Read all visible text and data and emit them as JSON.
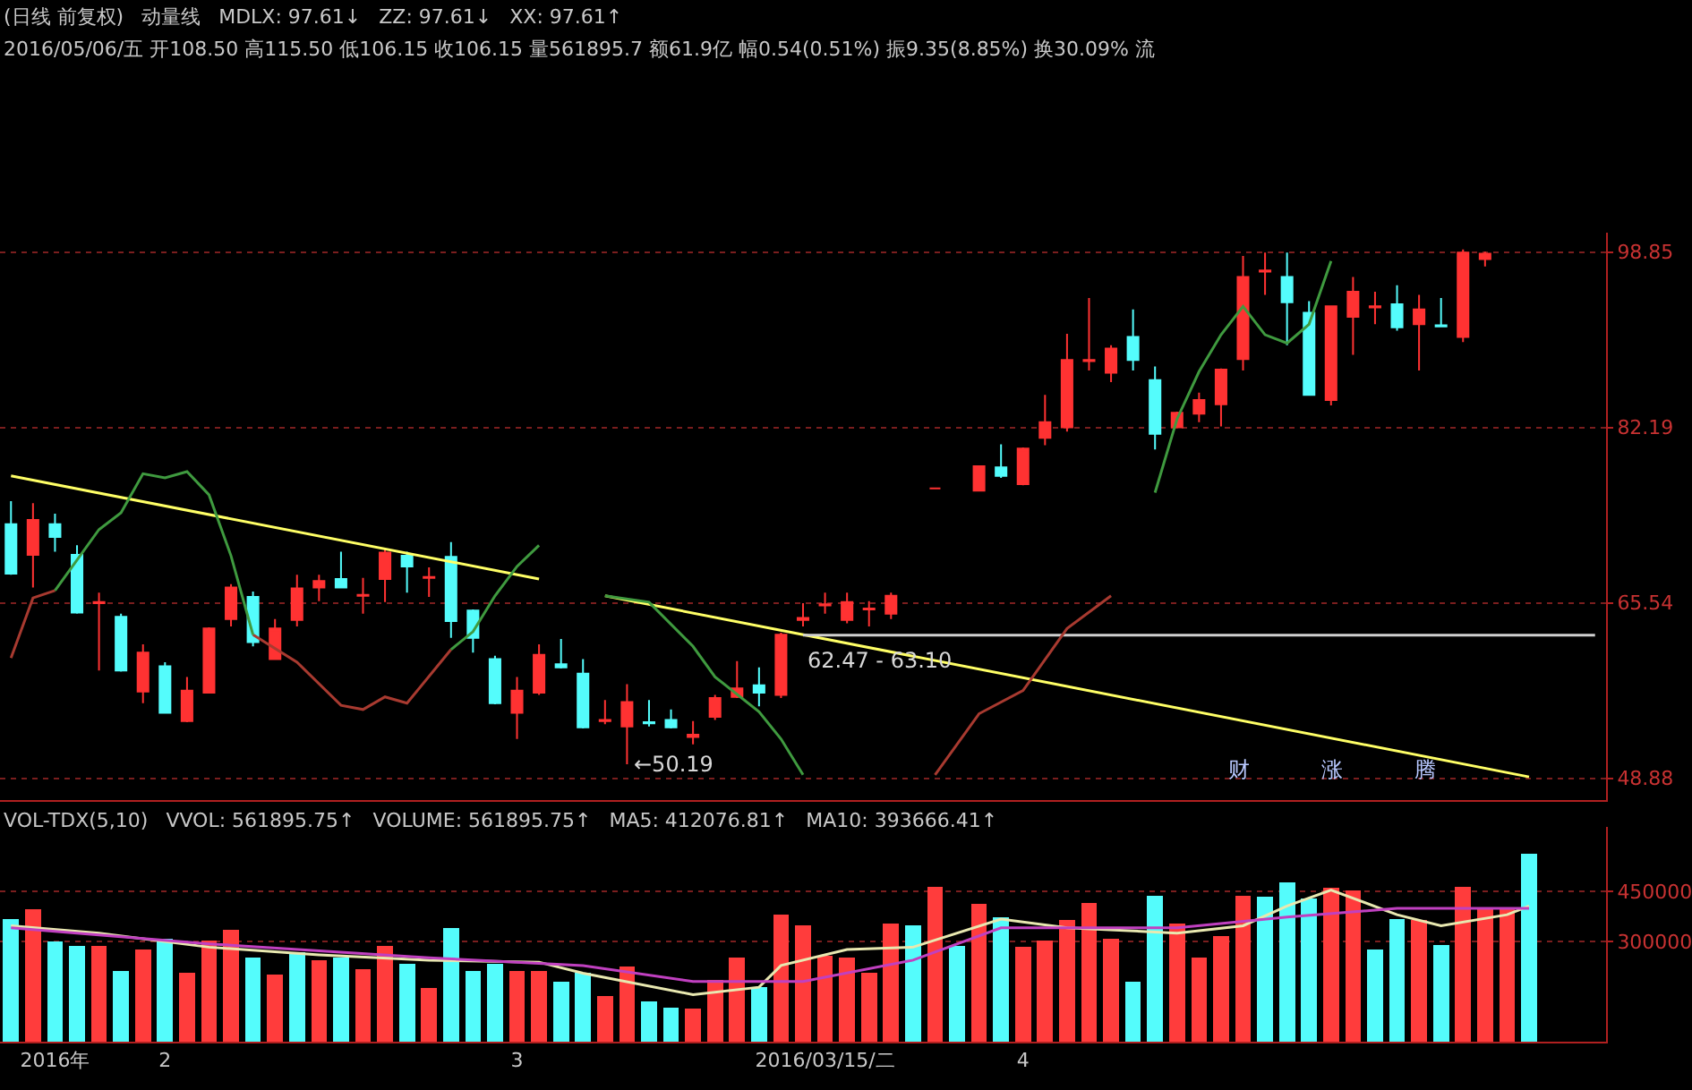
{
  "chart_data": [
    {
      "type": "candlestick",
      "title": "(日线 前复权)",
      "subtitle": "2016/05/06/五 开108.50 高115.50 低106.15 收106.15 量561895.7 额61.9亿 幅0.54(0.51%) 振9.35(8.85%) 换30.09% 流",
      "annotations": [
        "动量线",
        "MDLX: 97.61↓",
        "ZZ: 97.61↓",
        "XX: 97.61↑",
        "←50.19",
        "财",
        "涨",
        "腾",
        {
          "text": "62.47 - 63.10",
          "y": 62.47
        }
      ],
      "categories": [
        null,
        null,
        null,
        null,
        null,
        null,
        null,
        null,
        null,
        null,
        null,
        null,
        null,
        null,
        null,
        null,
        null,
        null,
        null,
        null,
        null,
        null,
        null,
        null,
        null,
        null,
        null,
        null,
        null,
        null,
        null,
        null,
        null,
        null,
        null,
        null,
        null,
        null,
        null,
        null,
        null,
        null,
        null,
        null,
        null,
        null,
        null,
        null,
        null,
        null,
        null,
        null,
        null,
        null,
        null,
        null,
        null,
        null,
        null,
        null,
        null,
        null,
        null,
        null,
        null,
        null,
        null,
        null,
        null,
        null,
        null,
        null,
        null
      ],
      "ohlc": [
        [
          73.0,
          75.2,
          68.2,
          68.3
        ],
        [
          70.1,
          75.0,
          67.0,
          73.4
        ],
        [
          73.0,
          74.0,
          70.4,
          71.8
        ],
        [
          70.1,
          71.0,
          64.5,
          64.6
        ],
        [
          65.5,
          66.5,
          59.1,
          65.6
        ],
        [
          64.2,
          64.5,
          59.0,
          59.1
        ],
        [
          57.1,
          61.6,
          56.0,
          60.8
        ],
        [
          59.5,
          59.9,
          55.0,
          55.1
        ],
        [
          54.3,
          58.5,
          54.2,
          57.2
        ],
        [
          57.0,
          63.2,
          57.0,
          63.1
        ],
        [
          64.0,
          67.3,
          63.3,
          67.0
        ],
        [
          66.1,
          66.6,
          61.4,
          61.8
        ],
        [
          60.2,
          64.0,
          60.2,
          63.1
        ],
        [
          63.9,
          68.2,
          63.3,
          66.9
        ],
        [
          67.0,
          68.2,
          65.7,
          67.6
        ],
        [
          67.8,
          70.4,
          66.9,
          67.0
        ],
        [
          66.2,
          67.9,
          64.5,
          66.3
        ],
        [
          67.8,
          70.6,
          65.6,
          70.3
        ],
        [
          70.0,
          70.4,
          66.5,
          69.0
        ],
        [
          67.9,
          68.9,
          66.1,
          68.0
        ],
        [
          69.9,
          71.3,
          62.2,
          63.8
        ],
        [
          64.8,
          64.9,
          60.8,
          62.2
        ],
        [
          60.2,
          60.5,
          55.9,
          56.0
        ],
        [
          55.1,
          58.5,
          52.6,
          57.2
        ],
        [
          57.0,
          61.6,
          56.8,
          60.6
        ],
        [
          59.7,
          62.1,
          59.3,
          59.4
        ],
        [
          58.8,
          60.2,
          53.6,
          53.7
        ],
        [
          54.3,
          56.3,
          54.0,
          54.4
        ],
        [
          53.8,
          57.8,
          50.19,
          56.1
        ],
        [
          54.2,
          56.3,
          53.8,
          54.1
        ],
        [
          54.4,
          55.4,
          53.6,
          53.7
        ],
        [
          52.8,
          54.3,
          52.1,
          53.0
        ],
        [
          54.7,
          56.8,
          54.4,
          56.5
        ],
        [
          56.6,
          60.0,
          56.5,
          57.4
        ],
        [
          57.7,
          59.4,
          55.7,
          57.0
        ],
        [
          56.8,
          62.7,
          56.5,
          62.5
        ],
        [
          63.9,
          65.5,
          63.3,
          64.1
        ],
        [
          65.3,
          66.5,
          64.5,
          65.4
        ],
        [
          63.9,
          66.5,
          63.6,
          65.6
        ],
        [
          64.9,
          65.7,
          63.3,
          65.0
        ],
        [
          64.5,
          66.5,
          64.0,
          66.2
        ],
        null,
        [
          76.4,
          76.4,
          76.4,
          76.4
        ],
        null,
        [
          76.2,
          78.5,
          76.1,
          78.5
        ],
        [
          78.4,
          80.6,
          77.4,
          77.6
        ],
        [
          76.8,
          80.3,
          76.7,
          80.2
        ],
        [
          81.2,
          85.3,
          80.5,
          82.7
        ],
        [
          82.2,
          91.1,
          81.8,
          88.6
        ],
        [
          88.5,
          94.5,
          87.6,
          88.6
        ],
        [
          87.4,
          90.0,
          86.5,
          89.7
        ],
        [
          90.8,
          93.4,
          87.6,
          88.6
        ],
        [
          86.7,
          88.0,
          80.1,
          81.6
        ],
        [
          82.2,
          83.7,
          82.1,
          83.6
        ],
        [
          83.5,
          85.5,
          82.7,
          84.8
        ],
        [
          84.4,
          87.8,
          82.3,
          87.7
        ],
        [
          88.7,
          98.5,
          87.6,
          96.5
        ],
        [
          97.0,
          98.8,
          94.8,
          97.1
        ],
        [
          96.5,
          98.8,
          90.0,
          94.1
        ],
        [
          93.1,
          94.2,
          85.2,
          85.3
        ],
        [
          84.8,
          93.8,
          84.3,
          93.7
        ],
        [
          92.7,
          96.5,
          89.1,
          95.1
        ],
        [
          93.6,
          95.1,
          92.0,
          93.7
        ],
        [
          93.9,
          95.7,
          91.4,
          91.7
        ],
        [
          92.0,
          94.8,
          87.6,
          93.4
        ],
        [
          91.9,
          94.5,
          91.7,
          91.8
        ],
        [
          90.8,
          99.1,
          90.3,
          98.8
        ],
        [
          98.2,
          98.9,
          97.5,
          98.7
        ],
        null,
        null,
        null,
        null,
        null
      ],
      "series": [
        {
          "type": "line",
          "color": "#ffff66",
          "values": [
            77.6,
            null,
            null,
            null,
            null,
            null,
            null,
            null,
            null,
            null,
            null,
            null,
            null,
            null,
            null,
            null,
            null,
            null,
            null,
            null,
            null,
            null,
            null,
            null,
            67.8,
            null,
            null,
            null,
            null,
            null,
            null,
            null,
            null,
            null,
            null,
            null,
            null,
            null,
            null,
            null,
            null,
            null,
            null,
            null,
            null,
            null,
            null,
            null,
            null,
            null,
            null,
            null,
            null,
            null,
            null,
            null,
            null,
            null,
            null,
            null,
            null,
            null,
            null,
            null,
            null,
            null,
            null,
            null,
            null,
            null,
            null,
            null,
            null
          ]
        },
        {
          "type": "line",
          "color": "#ffff66",
          "values": [
            null,
            null,
            null,
            null,
            null,
            null,
            null,
            null,
            null,
            null,
            null,
            null,
            null,
            null,
            null,
            null,
            null,
            null,
            null,
            null,
            null,
            null,
            null,
            null,
            null,
            null,
            null,
            66.2,
            null,
            null,
            null,
            null,
            null,
            null,
            null,
            null,
            null,
            null,
            null,
            null,
            null,
            null,
            null,
            null,
            null,
            null,
            null,
            null,
            null,
            null,
            null,
            null,
            null,
            null,
            null,
            null,
            null,
            null,
            null,
            null,
            null,
            null,
            null,
            null,
            null,
            null,
            null,
            null,
            null,
            49.0,
            null,
            null,
            null
          ]
        },
        {
          "type": "line",
          "color": "#d0d0d0",
          "values": [
            null,
            null,
            null,
            null,
            null,
            null,
            null,
            null,
            null,
            null,
            null,
            null,
            null,
            null,
            null,
            null,
            null,
            null,
            null,
            null,
            null,
            null,
            null,
            null,
            null,
            null,
            null,
            null,
            null,
            null,
            null,
            null,
            null,
            null,
            null,
            null,
            62.47,
            null,
            null,
            null,
            null,
            null,
            null,
            null,
            null,
            null,
            null,
            null,
            null,
            null,
            null,
            null,
            null,
            null,
            null,
            null,
            null,
            null,
            null,
            null,
            null,
            null,
            null,
            null,
            null,
            null,
            null,
            null,
            null,
            null,
            null,
            null,
            62.47
          ]
        },
        {
          "type": "line",
          "color": "#a83a30",
          "values": [
            60.3,
            66.0,
            66.7,
            null,
            null,
            null,
            null,
            null,
            null,
            null,
            null,
            null,
            null,
            null,
            null,
            null,
            null,
            null,
            null,
            null,
            null,
            null,
            null,
            null,
            null,
            null,
            null,
            null,
            null,
            null,
            null,
            null,
            null,
            null,
            null,
            null,
            null,
            null,
            null,
            null,
            null,
            null,
            null,
            null,
            null,
            null,
            null,
            null,
            null,
            null,
            null,
            null,
            null,
            null,
            null,
            null,
            null,
            null,
            null,
            null,
            null,
            null,
            null,
            null,
            null,
            null,
            null,
            null,
            null,
            null,
            null,
            null,
            null
          ]
        },
        {
          "type": "line",
          "color": "#a83a30",
          "values": [
            null,
            null,
            null,
            null,
            null,
            null,
            null,
            null,
            null,
            null,
            null,
            62.5,
            null,
            59.9,
            null,
            55.8,
            55.4,
            56.6,
            56.0,
            null,
            61.1,
            null,
            null,
            null,
            null,
            null,
            null,
            null,
            null,
            null,
            null,
            null,
            null,
            null,
            null,
            null,
            null,
            null,
            null,
            null,
            null,
            null,
            null,
            null,
            null,
            null,
            null,
            null,
            null,
            null,
            null,
            null,
            null,
            null,
            null,
            null,
            null,
            null,
            null,
            null,
            null,
            null,
            null,
            null,
            null,
            null,
            null,
            null,
            null,
            null,
            null,
            null,
            null
          ]
        },
        {
          "type": "line",
          "color": "#a83a30",
          "values": [
            null,
            null,
            null,
            null,
            null,
            null,
            null,
            null,
            null,
            null,
            null,
            null,
            null,
            null,
            null,
            null,
            null,
            null,
            null,
            null,
            null,
            null,
            null,
            null,
            null,
            null,
            null,
            null,
            null,
            null,
            null,
            null,
            null,
            null,
            null,
            null,
            null,
            null,
            null,
            null,
            null,
            null,
            49.2,
            null,
            55.0,
            null,
            57.2,
            null,
            63.1,
            null,
            66.2,
            null,
            null,
            null,
            null,
            null,
            null,
            null,
            null,
            null,
            null,
            null,
            null,
            null,
            null,
            null,
            null,
            null,
            null,
            null,
            null,
            null,
            null
          ]
        },
        {
          "type": "line",
          "color": "#3f9a3f",
          "values": [
            null,
            null,
            66.7,
            null,
            72.5,
            74.1,
            77.8,
            77.4,
            78.0,
            75.8,
            70.0,
            62.5,
            null,
            null,
            null,
            null,
            null,
            null,
            null,
            null,
            null,
            null,
            null,
            null,
            null,
            null,
            null,
            null,
            null,
            null,
            null,
            null,
            null,
            null,
            null,
            null,
            null,
            null,
            null,
            null,
            null,
            null,
            null,
            null,
            null,
            null,
            null,
            null,
            null,
            null,
            null,
            null,
            null,
            null,
            null,
            null,
            null,
            null,
            null,
            null,
            null,
            null,
            null,
            null,
            null,
            null,
            null,
            null,
            null,
            null,
            null,
            null,
            null
          ]
        },
        {
          "type": "line",
          "color": "#3f9a3f",
          "values": [
            null,
            null,
            null,
            null,
            null,
            null,
            null,
            null,
            null,
            null,
            null,
            null,
            null,
            null,
            null,
            null,
            null,
            null,
            null,
            null,
            61.1,
            62.8,
            66.2,
            69.0,
            71.0,
            null,
            null,
            null,
            null,
            null,
            null,
            null,
            null,
            null,
            null,
            null,
            null,
            null,
            null,
            null,
            null,
            null,
            null,
            null,
            null,
            null,
            null,
            null,
            null,
            null,
            null,
            null,
            null,
            null,
            null,
            null,
            null,
            null,
            null,
            null,
            null,
            null,
            null,
            null,
            null,
            null,
            null,
            null,
            null,
            null,
            null,
            null,
            null
          ]
        },
        {
          "type": "line",
          "color": "#3f9a3f",
          "values": [
            null,
            null,
            null,
            null,
            null,
            null,
            null,
            null,
            null,
            null,
            null,
            null,
            null,
            null,
            null,
            null,
            null,
            null,
            null,
            null,
            null,
            null,
            null,
            null,
            null,
            null,
            null,
            66.2,
            null,
            65.6,
            null,
            61.4,
            58.5,
            null,
            55.2,
            52.6,
            49.2,
            null,
            null,
            null,
            null,
            null,
            null,
            null,
            null,
            null,
            null,
            null,
            null,
            null,
            null,
            null,
            null,
            null,
            null,
            null,
            null,
            null,
            null,
            null,
            null,
            null,
            null,
            null,
            null,
            null,
            null,
            null,
            null,
            null,
            null,
            null,
            null
          ]
        },
        {
          "type": "line",
          "color": "#3f9a3f",
          "values": [
            null,
            null,
            null,
            null,
            null,
            null,
            null,
            null,
            null,
            null,
            null,
            null,
            null,
            null,
            null,
            null,
            null,
            null,
            null,
            null,
            null,
            null,
            null,
            null,
            null,
            null,
            null,
            null,
            null,
            null,
            null,
            null,
            null,
            null,
            null,
            null,
            null,
            null,
            null,
            null,
            null,
            null,
            null,
            null,
            null,
            null,
            null,
            null,
            null,
            null,
            null,
            null,
            76.0,
            83.0,
            87.5,
            91.0,
            93.7,
            91.0,
            90.2,
            92.0,
            98.0,
            null,
            null,
            null,
            null,
            null,
            null,
            null,
            null,
            null,
            null,
            null,
            null
          ]
        }
      ],
      "ylim": [
        46.8,
        100.7
      ],
      "yticks": [
        48.88,
        65.54,
        82.19,
        98.85
      ],
      "grid": "y",
      "tick_labels": "y"
    },
    {
      "type": "bar",
      "title": "VOL-TDX(5,10)",
      "annotations": [
        "VVOL: 561895.75↑",
        "VOLUME: 561895.75↑",
        "MA5: 412076.81↑",
        "MA10: 393666.41↑"
      ],
      "categories": [
        null,
        null,
        "2016年",
        null,
        null,
        null,
        null,
        "2",
        null,
        null,
        null,
        null,
        null,
        null,
        null,
        null,
        null,
        null,
        null,
        null,
        null,
        null,
        null,
        "3",
        null,
        null,
        null,
        null,
        null,
        null,
        null,
        null,
        null,
        null,
        null,
        null,
        null,
        "2016/03/15/二",
        null,
        null,
        null,
        null,
        null,
        null,
        null,
        null,
        "4",
        null,
        null,
        null,
        null,
        null,
        null,
        null,
        null,
        null,
        null,
        null,
        null,
        null,
        null,
        null,
        null,
        null,
        null,
        null,
        null,
        null,
        null,
        null,
        null,
        null,
        null
      ],
      "series": [
        {
          "type": "bar",
          "values": [
            367000,
            396000,
            299000,
            286000,
            286000,
            212000,
            276000,
            309000,
            205000,
            302000,
            335000,
            251000,
            202000,
            267000,
            244000,
            251000,
            218000,
            286000,
            234000,
            160000,
            341000,
            212000,
            234000,
            212000,
            212000,
            180000,
            205000,
            138000,
            225000,
            121000,
            102000,
            99000,
            186000,
            251000,
            163000,
            380000,
            347000,
            257000,
            251000,
            205000,
            354000,
            347000,
            464000,
            286000,
            412000,
            373000,
            283000,
            302000,
            364000,
            415000,
            309000,
            180000,
            438000,
            354000,
            251000,
            315000,
            438000,
            435000,
            477000,
            428000,
            460000,
            454000,
            276000,
            367000,
            364000,
            289000,
            464000,
            396000,
            396000,
            562000,
            null,
            null,
            null
          ],
          "colors": [
            "#54fcfc",
            "#ff3c3c",
            "#54fcfc",
            "#54fcfc",
            "#ff3c3c",
            "#54fcfc",
            "#ff3c3c",
            "#54fcfc",
            "#ff3c3c",
            "#ff3c3c",
            "#ff3c3c",
            "#54fcfc",
            "#ff3c3c",
            "#54fcfc",
            "#ff3c3c",
            "#54fcfc",
            "#ff3c3c",
            "#ff3c3c",
            "#54fcfc",
            "#ff3c3c",
            "#54fcfc",
            "#54fcfc",
            "#54fcfc",
            "#ff3c3c",
            "#ff3c3c",
            "#54fcfc",
            "#54fcfc",
            "#ff3c3c",
            "#ff3c3c",
            "#54fcfc",
            "#54fcfc",
            "#ff3c3c",
            "#ff3c3c",
            "#ff3c3c",
            "#54fcfc",
            "#ff3c3c",
            "#ff3c3c",
            "#ff3c3c",
            "#ff3c3c",
            "#ff3c3c",
            "#ff3c3c",
            "#54fcfc",
            "#ff3c3c",
            "#54fcfc",
            "#ff3c3c",
            "#54fcfc",
            "#ff3c3c",
            "#ff3c3c",
            "#ff3c3c",
            "#ff3c3c",
            "#ff3c3c",
            "#54fcfc",
            "#54fcfc",
            "#ff3c3c",
            "#ff3c3c",
            "#ff3c3c",
            "#ff3c3c",
            "#54fcfc",
            "#54fcfc",
            "#54fcfc",
            "#ff3c3c",
            "#ff3c3c",
            "#54fcfc",
            "#54fcfc",
            "#ff3c3c",
            "#54fcfc",
            "#ff3c3c",
            "#ff3c3c",
            "#ff3c3c",
            "#54fcfc",
            "#ff3c3c",
            "#ff3c3c",
            "#ff3c3c"
          ]
        },
        {
          "type": "line",
          "color": "#e8e8b0",
          "values": [
            347000,
            null,
            null,
            null,
            325000,
            null,
            null,
            null,
            null,
            283000,
            null,
            null,
            null,
            null,
            260000,
            null,
            null,
            null,
            null,
            244000,
            null,
            null,
            null,
            null,
            238000,
            null,
            205000,
            null,
            null,
            null,
            null,
            141000,
            null,
            null,
            163000,
            228000,
            null,
            null,
            276000,
            null,
            null,
            283000,
            null,
            null,
            null,
            367000,
            null,
            null,
            341000,
            null,
            null,
            null,
            null,
            325000,
            null,
            null,
            347000,
            null,
            406000,
            null,
            454000,
            null,
            null,
            380000,
            null,
            347000,
            null,
            null,
            380000,
            406000,
            null,
            null,
            null
          ]
        },
        {
          "type": "line",
          "color": "#c040c0",
          "values": [
            341000,
            null,
            null,
            null,
            null,
            null,
            null,
            null,
            null,
            293000,
            null,
            null,
            null,
            null,
            null,
            null,
            null,
            null,
            null,
            251000,
            null,
            null,
            null,
            null,
            null,
            null,
            228000,
            null,
            null,
            null,
            null,
            180000,
            null,
            null,
            null,
            null,
            180000,
            null,
            null,
            null,
            null,
            244000,
            null,
            null,
            null,
            341000,
            null,
            null,
            null,
            null,
            null,
            null,
            null,
            341000,
            null,
            null,
            null,
            null,
            373000,
            null,
            null,
            null,
            null,
            399000,
            null,
            null,
            null,
            null,
            null,
            399000,
            null,
            null,
            null
          ]
        }
      ],
      "ylim": [
        0,
        643000
      ],
      "yticks": [
        300000,
        450000
      ],
      "grid": "y"
    }
  ]
}
